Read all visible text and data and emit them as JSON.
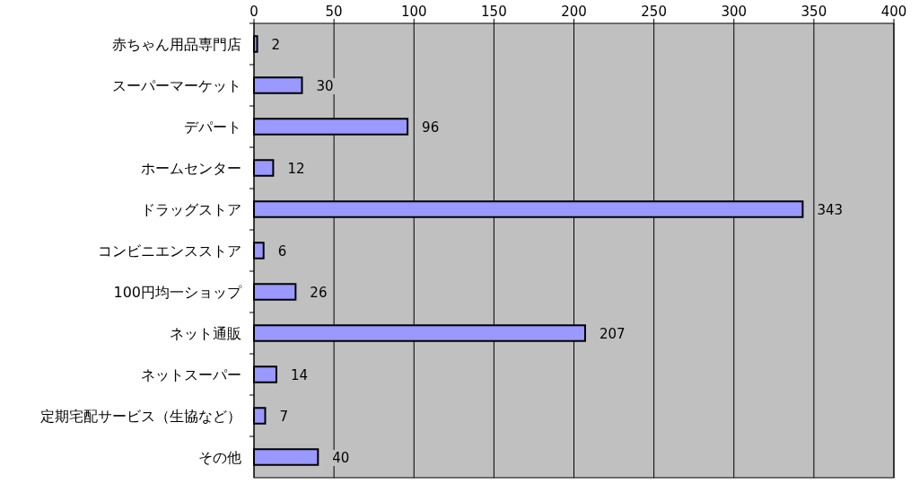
{
  "chart_data": {
    "type": "bar",
    "orientation": "horizontal",
    "categories": [
      "赤ちゃん用品専門店",
      "スーパーマーケット",
      "デパート",
      "ホームセンター",
      "ドラッグストア",
      "コンビニエンスストア",
      "100円均一ショップ",
      "ネット通販",
      "ネットスーパー",
      "定期宅配サービス（生協など）",
      "その他"
    ],
    "values": [
      2,
      30,
      96,
      12,
      343,
      6,
      26,
      207,
      14,
      7,
      40
    ],
    "color": "#9999ff",
    "xlim": [
      0,
      400
    ],
    "xticks": [
      0,
      50,
      100,
      150,
      200,
      250,
      300,
      350,
      400
    ],
    "grid": "x",
    "data_labels": true
  }
}
